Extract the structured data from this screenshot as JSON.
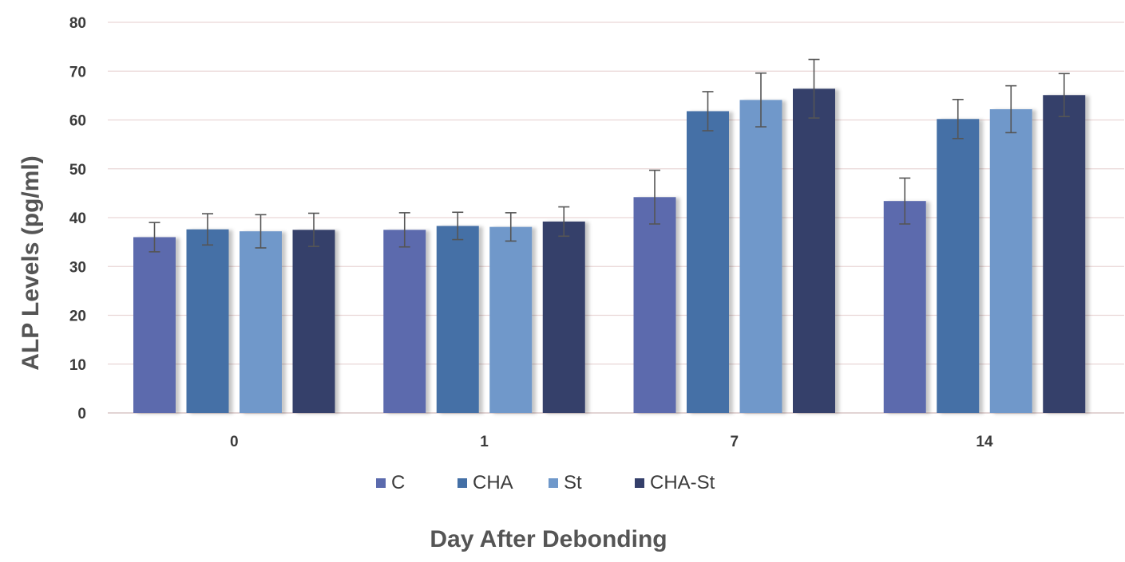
{
  "chart_data": {
    "type": "bar",
    "title": "",
    "xlabel": "Day After Debonding",
    "ylabel": "ALP Levels (pg/ml)",
    "categories": [
      "0",
      "1",
      "7",
      "14"
    ],
    "ylim": [
      0,
      80
    ],
    "yticks": [
      0,
      10,
      20,
      30,
      40,
      50,
      60,
      70,
      80
    ],
    "grid": true,
    "legend_position": "bottom",
    "series": [
      {
        "name": "C",
        "color": "#5b6aad",
        "values": [
          36.0,
          37.5,
          44.2,
          43.4
        ],
        "errors": [
          3.0,
          3.5,
          5.5,
          4.7
        ]
      },
      {
        "name": "CHA",
        "color": "#4470a6",
        "values": [
          37.6,
          38.3,
          61.8,
          60.2
        ],
        "errors": [
          3.2,
          2.8,
          4.0,
          4.0
        ]
      },
      {
        "name": "St",
        "color": "#6f98ca",
        "values": [
          37.2,
          38.1,
          64.1,
          62.2
        ],
        "errors": [
          3.4,
          2.9,
          5.5,
          4.8
        ]
      },
      {
        "name": "CHA-St",
        "color": "#343f6a",
        "values": [
          37.5,
          39.2,
          66.4,
          65.1
        ],
        "errors": [
          3.4,
          3.0,
          6.0,
          4.4
        ]
      }
    ]
  }
}
